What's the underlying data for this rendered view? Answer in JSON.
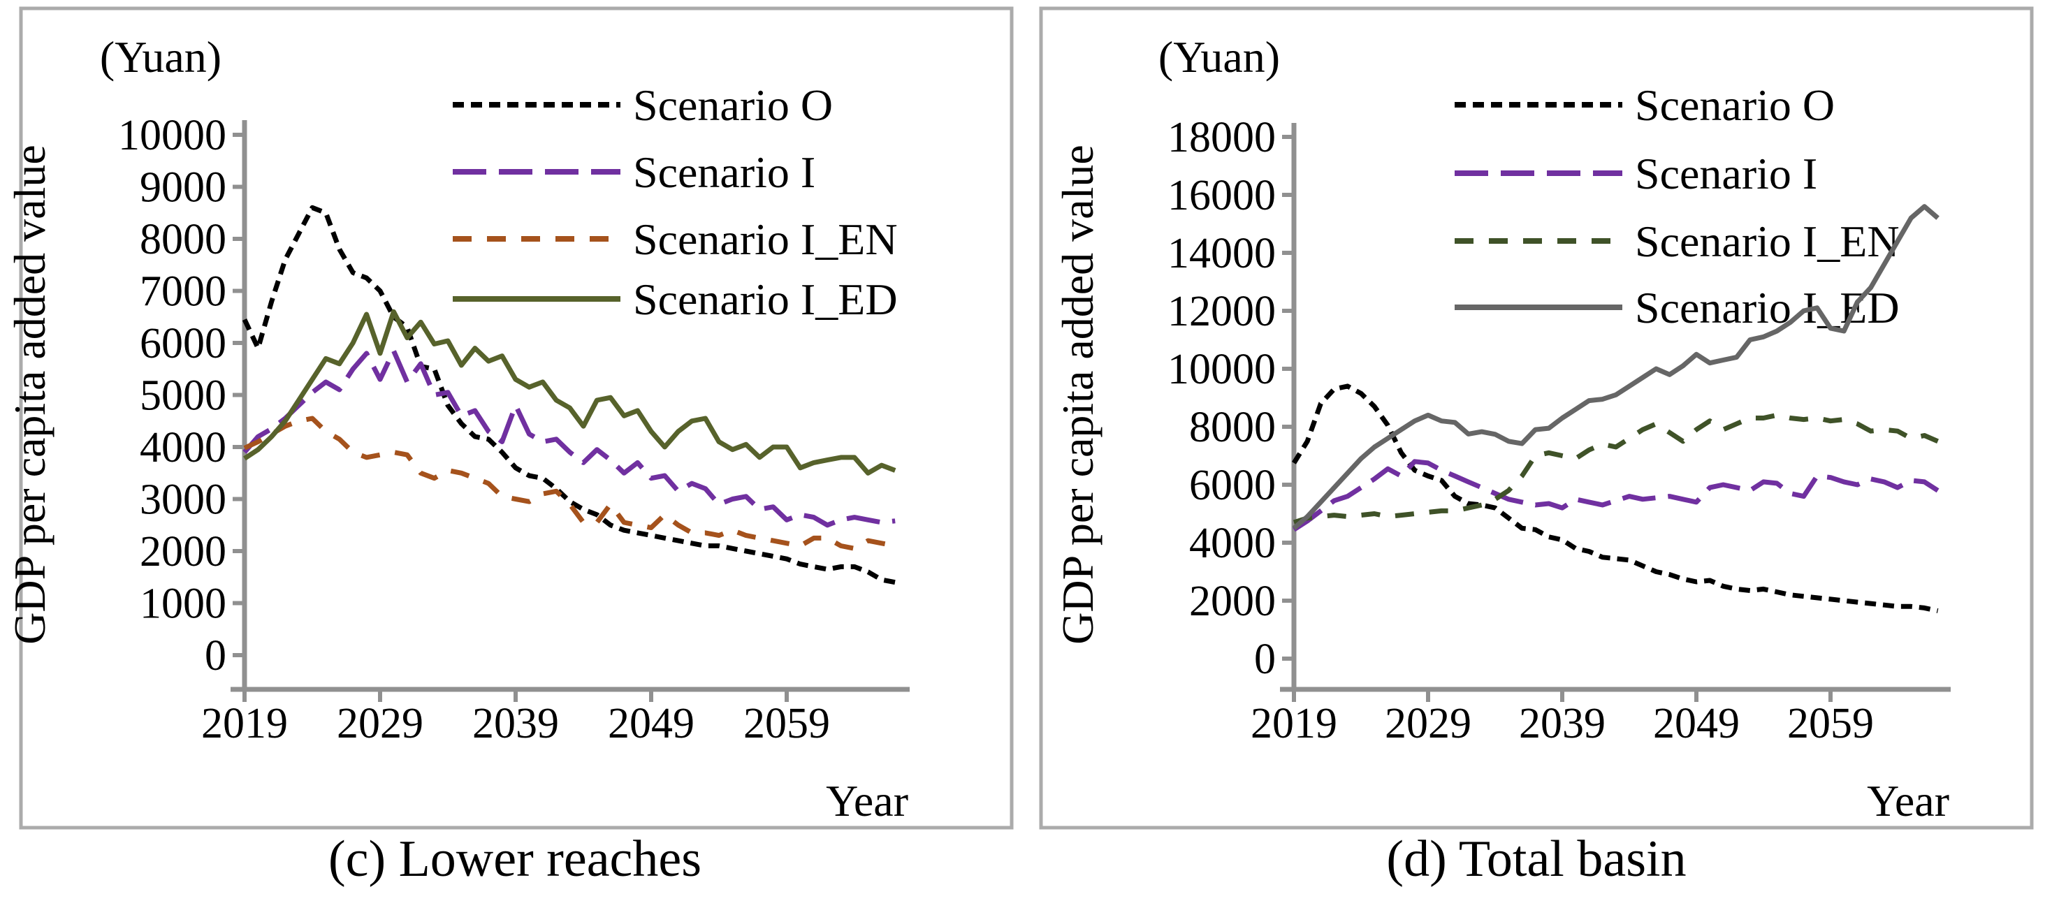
{
  "figure": {
    "panel_count": 2,
    "frame_color": "#ABABAB",
    "axis_color": "#909090",
    "text_color": "#000000",
    "background": "#FFFFFF"
  },
  "chart_data": [
    {
      "type": "line",
      "title": "(c) Lower reaches",
      "unit_label": "(Yuan)",
      "ylabel": "GDP per capita added value",
      "xlabel": "Year",
      "ylim": [
        0,
        10000
      ],
      "ytick_step": 1000,
      "yticks": [
        0,
        1000,
        2000,
        3000,
        4000,
        5000,
        6000,
        7000,
        8000,
        9000,
        10000
      ],
      "xticks": [
        2019,
        2029,
        2039,
        2049,
        2059
      ],
      "x_start": 2019,
      "x_end": 2067,
      "grid": "off",
      "legend_position": "top-inside",
      "series": [
        {
          "name": "Scenario O",
          "color": "#000000",
          "dash": "16 10",
          "values": [
            6450,
            5900,
            6800,
            7600,
            8100,
            8600,
            8500,
            7800,
            7350,
            7250,
            7000,
            6500,
            6300,
            5550,
            5500,
            4800,
            4450,
            4200,
            4150,
            3900,
            3600,
            3450,
            3400,
            3200,
            2950,
            2800,
            2700,
            2500,
            2400,
            2350,
            2300,
            2250,
            2200,
            2150,
            2100,
            2100,
            2050,
            2000,
            1950,
            1900,
            1850,
            1750,
            1700,
            1650,
            1700,
            1700,
            1600,
            1450,
            1400
          ]
        },
        {
          "name": "Scenario I",
          "color": "#7030A0",
          "dash": "48 18",
          "values": [
            3900,
            4200,
            4350,
            4550,
            4800,
            5050,
            5250,
            5100,
            5500,
            5800,
            5300,
            5850,
            5250,
            5600,
            5000,
            5050,
            4600,
            4700,
            4300,
            4100,
            4800,
            4250,
            4100,
            4150,
            3900,
            3700,
            3950,
            3750,
            3500,
            3700,
            3400,
            3450,
            3150,
            3300,
            3200,
            2900,
            3000,
            3050,
            2800,
            2850,
            2600,
            2700,
            2650,
            2500,
            2600,
            2650,
            2600,
            2550,
            2580
          ]
        },
        {
          "name": "Scenario I_EN",
          "color": "#A5521C",
          "dash": "27 22",
          "values": [
            3980,
            4100,
            4250,
            4400,
            4500,
            4550,
            4300,
            4150,
            3900,
            3800,
            3850,
            3900,
            3850,
            3500,
            3400,
            3550,
            3500,
            3400,
            3300,
            3050,
            3000,
            2950,
            3100,
            3150,
            2900,
            2550,
            2550,
            2900,
            2550,
            2500,
            2450,
            2700,
            2500,
            2350,
            2350,
            2300,
            2400,
            2300,
            2250,
            2200,
            2150,
            2100,
            2250,
            2250,
            2100,
            2050,
            2200,
            2150,
            2100
          ]
        },
        {
          "name": "Scenario I_ED",
          "color": "#57622B",
          "dash": null,
          "values": [
            3780,
            3950,
            4200,
            4500,
            4900,
            5300,
            5700,
            5600,
            6000,
            6550,
            5800,
            6600,
            6100,
            6400,
            5980,
            6040,
            5570,
            5900,
            5650,
            5750,
            5300,
            5150,
            5250,
            4900,
            4750,
            4400,
            4900,
            4950,
            4600,
            4700,
            4300,
            4000,
            4300,
            4500,
            4550,
            4100,
            3950,
            4050,
            3800,
            4000,
            4000,
            3600,
            3700,
            3750,
            3800,
            3800,
            3500,
            3650,
            3550
          ]
        }
      ]
    },
    {
      "type": "line",
      "title": "(d) Total basin",
      "unit_label": "(Yuan)",
      "ylabel": "GDP per capita added value",
      "xlabel": "Year",
      "ylim": [
        0,
        18000
      ],
      "ytick_step": 2000,
      "yticks": [
        0,
        2000,
        4000,
        6000,
        8000,
        10000,
        12000,
        14000,
        16000,
        18000
      ],
      "xticks": [
        2019,
        2029,
        2039,
        2049,
        2059
      ],
      "x_start": 2019,
      "x_end": 2067,
      "grid": "off",
      "legend_position": "top-inside",
      "series": [
        {
          "name": "Scenario O",
          "color": "#000000",
          "dash": "16 10",
          "values": [
            6750,
            7500,
            8800,
            9300,
            9400,
            9150,
            8700,
            8050,
            7100,
            6500,
            6300,
            6150,
            5600,
            5350,
            5300,
            5200,
            4850,
            4500,
            4450,
            4200,
            4100,
            3800,
            3700,
            3500,
            3450,
            3400,
            3200,
            3000,
            2900,
            2750,
            2650,
            2700,
            2500,
            2400,
            2350,
            2400,
            2300,
            2200,
            2150,
            2100,
            2050,
            2000,
            1950,
            1900,
            1850,
            1800,
            1800,
            1750,
            1650
          ]
        },
        {
          "name": "Scenario I",
          "color": "#7030A0",
          "dash": "48 18",
          "values": [
            4450,
            4750,
            5100,
            5450,
            5600,
            5900,
            6200,
            6550,
            6300,
            6800,
            6750,
            6500,
            6300,
            6100,
            5900,
            5700,
            5500,
            5400,
            5300,
            5350,
            5200,
            5500,
            5400,
            5300,
            5450,
            5600,
            5500,
            5550,
            5600,
            5500,
            5400,
            5900,
            6000,
            5900,
            5800,
            6100,
            6050,
            5700,
            5600,
            6300,
            6250,
            6100,
            6000,
            6200,
            6100,
            5900,
            6150,
            6100,
            5800
          ]
        },
        {
          "name": "Scenario I_EN",
          "color": "#3F5228",
          "dash": "27 22",
          "values": [
            4700,
            4850,
            4900,
            4950,
            4900,
            4950,
            5000,
            4900,
            4950,
            5000,
            5050,
            5100,
            5100,
            5200,
            5300,
            5500,
            5800,
            6300,
            7000,
            7100,
            7000,
            6900,
            7200,
            7400,
            7300,
            7600,
            7900,
            8100,
            7800,
            7500,
            7900,
            8200,
            7900,
            8100,
            8300,
            8300,
            8400,
            8300,
            8250,
            8300,
            8200,
            8250,
            8100,
            7850,
            7900,
            7850,
            7600,
            7700,
            7500
          ]
        },
        {
          "name": "Scenario I_ED",
          "color": "#666666",
          "dash": null,
          "values": [
            4500,
            4900,
            5400,
            5900,
            6400,
            6900,
            7300,
            7600,
            7900,
            8200,
            8400,
            8200,
            8150,
            7750,
            7830,
            7740,
            7500,
            7420,
            7900,
            7950,
            8300,
            8600,
            8900,
            8950,
            9100,
            9400,
            9700,
            10000,
            9800,
            10100,
            10500,
            10200,
            10300,
            10400,
            11000,
            11100,
            11300,
            11600,
            12000,
            12100,
            11400,
            11300,
            12300,
            12800,
            13600,
            14400,
            15200,
            15600,
            15200
          ]
        }
      ]
    }
  ]
}
